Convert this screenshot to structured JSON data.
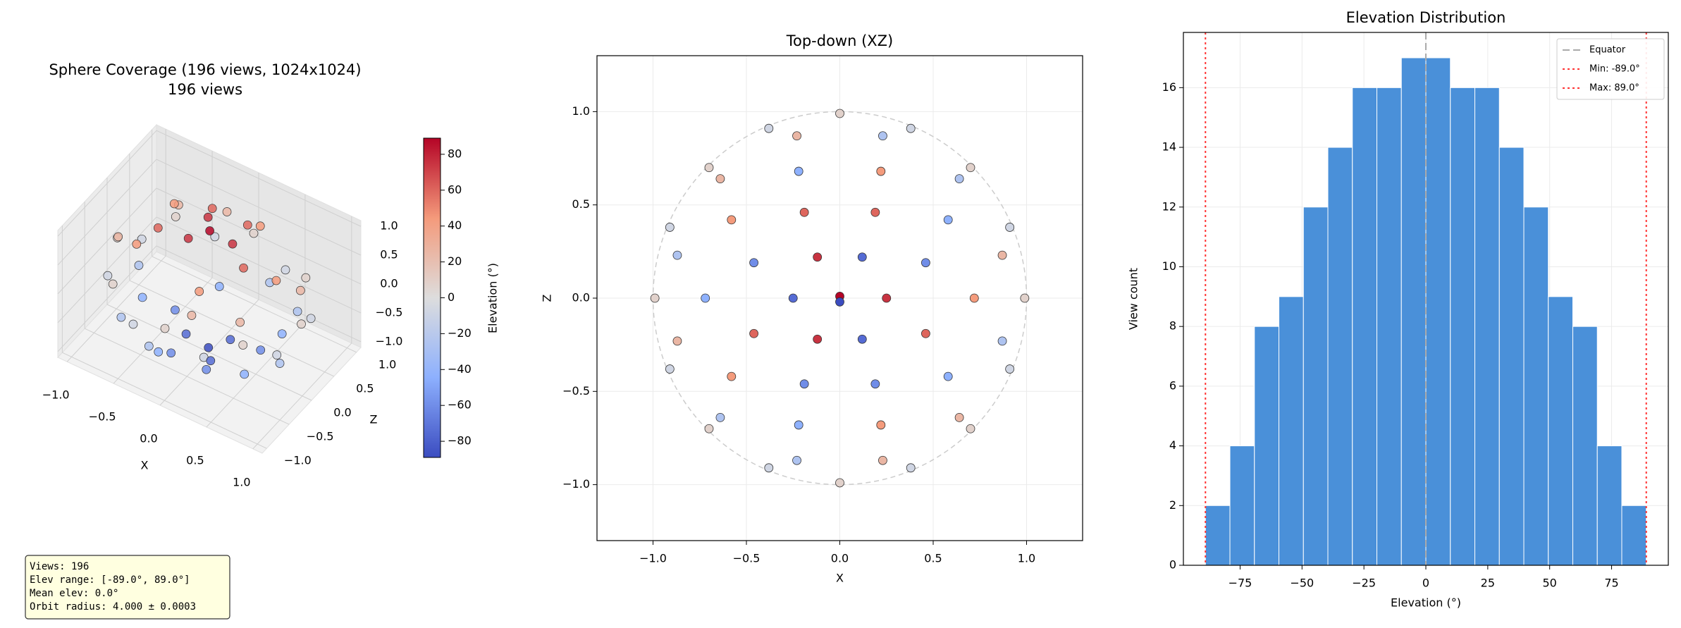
{
  "chart_data": [
    {
      "type": "scatter3d",
      "title": "Sphere Coverage (196 views, 1024x1024)",
      "subtitle": "196 views",
      "xlabel": "X",
      "zlabel": "Z",
      "colorbar_label": "Elevation (°)",
      "colormap": "coolwarm",
      "clim": [
        -89,
        89
      ],
      "colorbar_ticks": [
        {
          "value": -80,
          "label": "−80"
        },
        {
          "value": -60,
          "label": "−60"
        },
        {
          "value": -40,
          "label": "−40"
        },
        {
          "value": -20,
          "label": "−20"
        },
        0,
        20,
        40,
        60,
        80
      ],
      "xlim": [
        -1.1,
        1.1
      ],
      "ylim": [
        -1.1,
        1.1
      ],
      "zlim": [
        -1.1,
        1.1
      ],
      "xticks": [
        {
          "value": -1,
          "label": "−1.0"
        },
        {
          "value": -0.5,
          "label": "−0.5"
        },
        {
          "value": 0,
          "label": "0.0"
        },
        {
          "value": 0.5,
          "label": "0.5"
        },
        {
          "value": 1,
          "label": "1.0"
        }
      ],
      "yticks": [
        {
          "value": -1,
          "label": "−1.0"
        },
        {
          "value": -0.5,
          "label": "−0.5"
        },
        {
          "value": 0,
          "label": "0.0"
        },
        {
          "value": 0.5,
          "label": "0.5"
        },
        {
          "value": 1,
          "label": "1.0"
        }
      ],
      "zticks": [
        {
          "value": -1,
          "label": "−1.0"
        },
        {
          "value": -0.5,
          "label": "−0.5"
        },
        {
          "value": 0,
          "label": "0.0"
        },
        {
          "value": 0.5,
          "label": "0.5"
        },
        {
          "value": 1,
          "label": "1.0"
        }
      ],
      "x": [
        0.99,
        0.91,
        0.7,
        0.38,
        0,
        -0.38,
        -0.7,
        -0.91,
        -0.99,
        -0.91,
        -0.7,
        -0.38,
        0,
        0.38,
        0.7,
        0.91,
        0.87,
        0.64,
        0.23,
        -0.23,
        -0.64,
        -0.87,
        -0.87,
        -0.64,
        -0.23,
        0.23,
        0.64,
        0.87,
        0.72,
        0.58,
        0.22,
        -0.22,
        -0.58,
        -0.72,
        -0.58,
        -0.22,
        0.22,
        0.58,
        0.46,
        0.19,
        -0.19,
        -0.46,
        -0.46,
        -0.19,
        0.19,
        0.46,
        0.25,
        0.12,
        -0.12,
        -0.25,
        -0.12,
        0.12,
        0,
        0
      ],
      "y": [
        0.14,
        -0.14,
        0.14,
        -0.14,
        0.14,
        -0.14,
        0.14,
        -0.14,
        0.14,
        -0.14,
        0.14,
        -0.14,
        0.14,
        -0.14,
        0.14,
        -0.14,
        0.44,
        -0.44,
        -0.44,
        0.44,
        0.44,
        -0.44,
        0.44,
        -0.44,
        -0.44,
        0.44,
        0.44,
        -0.44,
        0.69,
        -0.69,
        0.69,
        -0.69,
        0.69,
        -0.69,
        0.69,
        -0.69,
        0.69,
        -0.69,
        -0.87,
        0.87,
        0.87,
        -0.87,
        0.87,
        -0.87,
        -0.87,
        0.87,
        0.97,
        -0.97,
        0.97,
        -0.97,
        0.97,
        -0.97,
        1.0,
        -1.0
      ],
      "z": [
        0,
        0.38,
        0.7,
        0.91,
        0.99,
        0.91,
        0.7,
        0.38,
        0,
        -0.38,
        -0.7,
        -0.91,
        -0.99,
        -0.91,
        -0.7,
        -0.38,
        0.23,
        0.64,
        0.87,
        0.87,
        0.64,
        0.23,
        -0.23,
        -0.64,
        -0.87,
        -0.87,
        -0.64,
        -0.23,
        0,
        0.42,
        0.68,
        0.68,
        0.42,
        0,
        -0.42,
        -0.68,
        -0.68,
        -0.42,
        0.19,
        0.46,
        0.46,
        0.19,
        -0.19,
        -0.46,
        -0.46,
        -0.19,
        0,
        0.22,
        0.22,
        0,
        -0.22,
        -0.22,
        0.01,
        -0.02
      ],
      "color_values": [
        8,
        -8,
        8,
        -8,
        8,
        -8,
        8,
        -8,
        8,
        -8,
        8,
        -8,
        8,
        -8,
        8,
        -8,
        26,
        -26,
        -26,
        26,
        26,
        -26,
        26,
        -26,
        -26,
        26,
        26,
        -26,
        44,
        -44,
        44,
        -44,
        44,
        -44,
        44,
        -44,
        44,
        -44,
        -60,
        60,
        60,
        -60,
        60,
        -60,
        -60,
        60,
        75,
        -75,
        75,
        -75,
        75,
        -75,
        89,
        -89
      ],
      "annotation": [
        "Views: 196",
        "Elev range: [-89.0°, 89.0°]",
        "Mean elev: 0.0°",
        "Orbit radius: 4.000 ± 0.0003"
      ]
    },
    {
      "type": "scatter",
      "title": "Top-down (XZ)",
      "xlabel": "X",
      "ylabel": "Z",
      "colormap": "coolwarm",
      "clim": [
        -89,
        89
      ],
      "grid": true,
      "xlim": [
        -1.3,
        1.3
      ],
      "ylim": [
        -1.3,
        1.3
      ],
      "xticks": [
        {
          "value": -1,
          "label": "−1.0"
        },
        {
          "value": -0.5,
          "label": "−0.5"
        },
        {
          "value": 0,
          "label": "0.0"
        },
        {
          "value": 0.5,
          "label": "0.5"
        },
        {
          "value": 1,
          "label": "1.0"
        }
      ],
      "yticks": [
        {
          "value": -1,
          "label": "−1.0"
        },
        {
          "value": -0.5,
          "label": "−0.5"
        },
        {
          "value": 0,
          "label": "0.0"
        },
        {
          "value": 0.5,
          "label": "0.5"
        },
        {
          "value": 1,
          "label": "1.0"
        }
      ],
      "x": [
        0.99,
        0.91,
        0.7,
        0.38,
        0,
        -0.38,
        -0.7,
        -0.91,
        -0.99,
        -0.91,
        -0.7,
        -0.38,
        0,
        0.38,
        0.7,
        0.91,
        0.87,
        0.64,
        0.23,
        -0.23,
        -0.64,
        -0.87,
        -0.87,
        -0.64,
        -0.23,
        0.23,
        0.64,
        0.87,
        0.72,
        0.58,
        0.22,
        -0.22,
        -0.58,
        -0.72,
        -0.58,
        -0.22,
        0.22,
        0.58,
        0.46,
        0.19,
        -0.19,
        -0.46,
        -0.46,
        -0.19,
        0.19,
        0.46,
        0.25,
        0.12,
        -0.12,
        -0.25,
        -0.12,
        0.12,
        0,
        0
      ],
      "y": [
        0,
        0.38,
        0.7,
        0.91,
        0.99,
        0.91,
        0.7,
        0.38,
        0,
        -0.38,
        -0.7,
        -0.91,
        -0.99,
        -0.91,
        -0.7,
        -0.38,
        0.23,
        0.64,
        0.87,
        0.87,
        0.64,
        0.23,
        -0.23,
        -0.64,
        -0.87,
        -0.87,
        -0.64,
        -0.23,
        0,
        0.42,
        0.68,
        0.68,
        0.42,
        0,
        -0.42,
        -0.68,
        -0.68,
        -0.42,
        0.19,
        0.46,
        0.46,
        0.19,
        -0.19,
        -0.46,
        -0.46,
        -0.19,
        0,
        0.22,
        0.22,
        0,
        -0.22,
        -0.22,
        0.01,
        -0.02
      ],
      "color_values": [
        8,
        -8,
        8,
        -8,
        8,
        -8,
        8,
        -8,
        8,
        -8,
        8,
        -8,
        8,
        -8,
        8,
        -8,
        26,
        -26,
        -26,
        26,
        26,
        -26,
        26,
        -26,
        -26,
        26,
        26,
        -26,
        44,
        -44,
        44,
        -44,
        44,
        -44,
        44,
        -44,
        44,
        -44,
        -60,
        60,
        60,
        -60,
        60,
        -60,
        -60,
        60,
        75,
        -75,
        75,
        -75,
        75,
        -75,
        89,
        -89
      ]
    },
    {
      "type": "histogram",
      "title": "Elevation Distribution",
      "xlabel": "Elevation (°)",
      "ylabel": "View count",
      "color": "#4a90d9",
      "grid": true,
      "bins": [
        -89,
        -79.11,
        -69.22,
        -59.33,
        -49.44,
        -39.56,
        -29.67,
        -19.78,
        -9.89,
        0,
        9.89,
        19.78,
        29.67,
        39.56,
        49.44,
        59.33,
        69.22,
        79.11,
        89
      ],
      "values": [
        2,
        4,
        8,
        9,
        12,
        14,
        16,
        16,
        17,
        17,
        16,
        16,
        14,
        12,
        9,
        8,
        4,
        2
      ],
      "xlim": [
        -97.9,
        97.9
      ],
      "ylim": [
        0,
        17.85
      ],
      "xticks": [
        {
          "value": -75,
          "label": "−75"
        },
        {
          "value": -50,
          "label": "−50"
        },
        {
          "value": -25,
          "label": "−25"
        },
        0,
        25,
        50,
        75
      ],
      "yticks": [
        0,
        2,
        4,
        6,
        8,
        10,
        12,
        14,
        16
      ],
      "legend": "upper right",
      "reference_lines": [
        {
          "label": "Equator",
          "value": 0,
          "color": "#aaaaaa",
          "style": "dashed"
        },
        {
          "label": "Min: -89.0°",
          "value": -89,
          "color": "#ff3333",
          "style": "dotted"
        },
        {
          "label": "Max: 89.0°",
          "value": 89,
          "color": "#ff3333",
          "style": "dotted"
        }
      ]
    }
  ]
}
